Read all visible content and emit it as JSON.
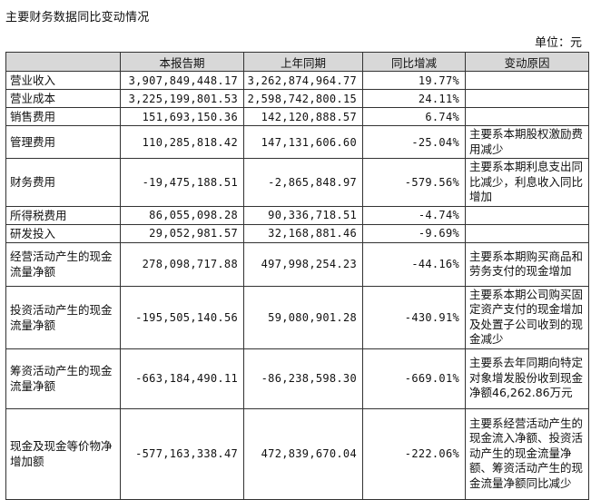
{
  "title": "主要财务数据同比变动情况",
  "unit": "单位：元",
  "table": {
    "headers": [
      "",
      "本报告期",
      "上年同期",
      "同比增减",
      "变动原因"
    ],
    "rows": [
      {
        "label": "营业收入",
        "current": "3,907,849,448.17",
        "previous": "3,262,874,964.77",
        "change": "19.77%",
        "reason": ""
      },
      {
        "label": "营业成本",
        "current": "3,225,199,801.53",
        "previous": "2,598,742,800.15",
        "change": "24.11%",
        "reason": ""
      },
      {
        "label": "销售费用",
        "current": "151,693,150.36",
        "previous": "142,120,888.57",
        "change": "6.74%",
        "reason": ""
      },
      {
        "label": "管理费用",
        "current": "110,285,818.42",
        "previous": "147,131,606.60",
        "change": "-25.04%",
        "reason": "主要系本期股权激励费用减少"
      },
      {
        "label": "财务费用",
        "current": "-19,475,188.51",
        "previous": "-2,865,848.97",
        "change": "-579.56%",
        "reason": "主要系本期利息支出同比减少，利息收入同比增加"
      },
      {
        "label": "所得税费用",
        "current": "86,055,098.28",
        "previous": "90,336,718.51",
        "change": "-4.74%",
        "reason": ""
      },
      {
        "label": "研发投入",
        "current": "29,052,981.57",
        "previous": "32,168,881.46",
        "change": "-9.69%",
        "reason": ""
      },
      {
        "label": "经营活动产生的现金流量净额",
        "current": "278,098,717.88",
        "previous": "497,998,254.23",
        "change": "-44.16%",
        "reason": "主要系本期购买商品和劳务支付的现金增加"
      },
      {
        "label": "投资活动产生的现金流量净额",
        "current": "-195,505,140.56",
        "previous": "59,080,901.28",
        "change": "-430.91%",
        "reason": "主要系本期公司购买固定资产支付的现金增加及处置子公司收到的现金减少"
      },
      {
        "label": "筹资活动产生的现金流量净额",
        "current": "-663,184,490.11",
        "previous": "-86,238,598.30",
        "change": "-669.01%",
        "reason": "主要系去年同期向特定对象增发股份收到现金净额46,262.86万元"
      },
      {
        "label": "现金及现金等价物净增加额",
        "current": "-577,163,338.47",
        "previous": "472,839,670.04",
        "change": "-222.06%",
        "reason": "主要系经营活动产生的现金流入净额、投资活动产生的现金流量净额、筹资活动产生的现金流量净额同比减少"
      }
    ]
  }
}
